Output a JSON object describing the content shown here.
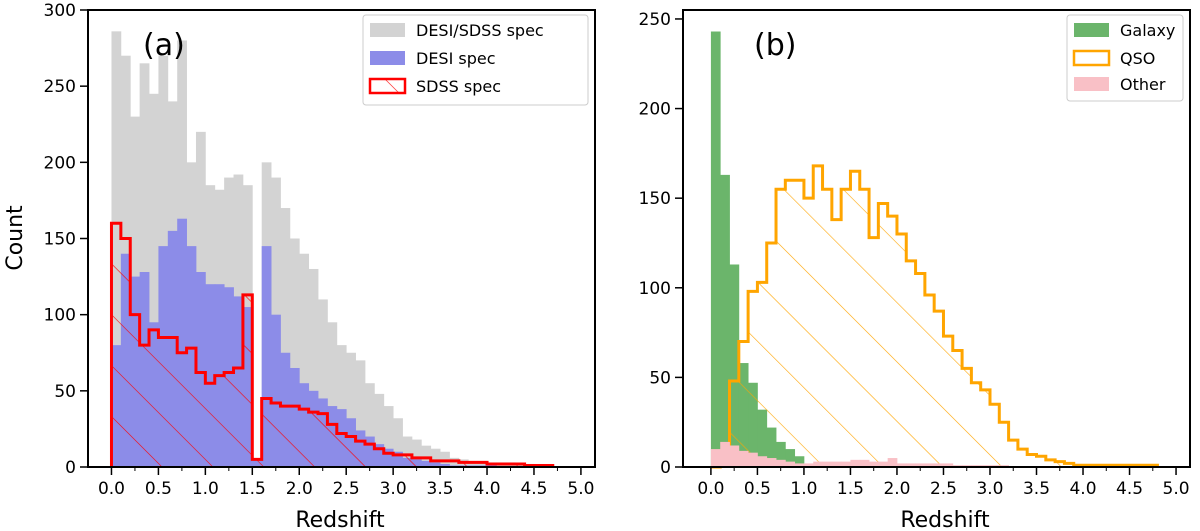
{
  "chart_data": [
    {
      "type": "histogram",
      "panel_label": "(a)",
      "xlabel": "Redshift",
      "ylabel": "Count",
      "xlim": [
        -0.25,
        5.15
      ],
      "ylim": [
        0,
        300
      ],
      "x_ticks": [
        "0.0",
        "0.5",
        "1.0",
        "1.5",
        "2.0",
        "2.5",
        "3.0",
        "3.5",
        "4.0",
        "4.5",
        "5.0"
      ],
      "x_tick_values": [
        0,
        0.5,
        1,
        1.5,
        2,
        2.5,
        3,
        3.5,
        4,
        4.5,
        5
      ],
      "y_ticks": [
        "0",
        "50",
        "100",
        "150",
        "200",
        "250",
        "300"
      ],
      "y_tick_values": [
        0,
        50,
        100,
        150,
        200,
        250,
        300
      ],
      "legend_position": "top-right",
      "bin_start": 0.0,
      "bin_width": 0.1,
      "series": [
        {
          "name": "DESI/SDSS spec",
          "style": "filled",
          "color": "#d3d3d3",
          "values": [
            286,
            270,
            230,
            265,
            245,
            270,
            240,
            280,
            200,
            220,
            185,
            182,
            190,
            192,
            185,
            5,
            200,
            190,
            170,
            150,
            140,
            130,
            110,
            95,
            80,
            75,
            70,
            55,
            48,
            40,
            32,
            20,
            18,
            14,
            12,
            10,
            6,
            5,
            4,
            4,
            3,
            3,
            3,
            2,
            2,
            1,
            1
          ]
        },
        {
          "name": "DESI spec",
          "style": "filled",
          "color": "#8c8ce8",
          "values": [
            80,
            140,
            125,
            128,
            95,
            145,
            155,
            163,
            145,
            128,
            120,
            120,
            118,
            112,
            105,
            5,
            145,
            100,
            75,
            65,
            55,
            50,
            45,
            40,
            38,
            32,
            24,
            20,
            15,
            12,
            10,
            6,
            5,
            4,
            3,
            2,
            1,
            1,
            1,
            1,
            1,
            0,
            0,
            0,
            0,
            0,
            0
          ]
        },
        {
          "name": "SDSS spec",
          "style": "hatched-outline",
          "color": "#ff0000",
          "values": [
            160,
            150,
            100,
            80,
            90,
            85,
            85,
            75,
            78,
            62,
            55,
            60,
            62,
            65,
            113,
            5,
            45,
            42,
            40,
            40,
            38,
            36,
            35,
            28,
            22,
            20,
            17,
            15,
            12,
            9,
            8,
            8,
            6,
            6,
            4,
            4,
            4,
            3,
            3,
            3,
            2,
            2,
            2,
            2,
            1,
            1,
            1
          ]
        }
      ]
    },
    {
      "type": "histogram",
      "panel_label": "(b)",
      "xlabel": "Redshift",
      "ylabel": "",
      "xlim": [
        -0.3,
        5.15
      ],
      "ylim": [
        0,
        255
      ],
      "x_ticks": [
        "0.0",
        "0.5",
        "1.0",
        "1.5",
        "2.0",
        "2.5",
        "3.0",
        "3.5",
        "4.0",
        "4.5",
        "5.0"
      ],
      "x_tick_values": [
        0,
        0.5,
        1,
        1.5,
        2,
        2.5,
        3,
        3.5,
        4,
        4.5,
        5
      ],
      "y_ticks": [
        "0",
        "50",
        "100",
        "150",
        "200",
        "250"
      ],
      "y_tick_values": [
        0,
        50,
        100,
        150,
        200,
        250
      ],
      "legend_position": "top-right",
      "bin_start": 0.0,
      "bin_width": 0.1,
      "series": [
        {
          "name": "Galaxy",
          "style": "filled",
          "color": "#6bb56b",
          "values": [
            243,
            163,
            113,
            58,
            47,
            32,
            22,
            14,
            10,
            6,
            0,
            0,
            0,
            0,
            0,
            0,
            0,
            0,
            0,
            0,
            0,
            0,
            0,
            0,
            0,
            0,
            0,
            0,
            0,
            0,
            0,
            0,
            0,
            0,
            0,
            0,
            0,
            0,
            0,
            0,
            0,
            0,
            0,
            0,
            0,
            0,
            0,
            0
          ]
        },
        {
          "name": "QSO",
          "style": "hatched-outline",
          "color": "#ffa500",
          "values": [
            0,
            5,
            48,
            70,
            98,
            103,
            125,
            155,
            160,
            160,
            150,
            168,
            155,
            138,
            155,
            165,
            155,
            128,
            147,
            140,
            130,
            115,
            108,
            96,
            87,
            73,
            65,
            55,
            47,
            43,
            35,
            25,
            15,
            10,
            7,
            6,
            4,
            3,
            2,
            1,
            1,
            1,
            1,
            1,
            1,
            1,
            1,
            1
          ]
        },
        {
          "name": "Other",
          "style": "filled",
          "color": "#f9c0c6",
          "values": [
            10,
            14,
            12,
            9,
            8,
            6,
            5,
            4,
            3,
            2,
            2,
            3,
            3,
            3,
            3,
            4,
            4,
            3,
            3,
            5,
            2,
            2,
            2,
            2,
            2,
            2,
            1,
            1,
            1,
            1,
            1,
            1,
            0,
            0,
            0,
            0,
            0,
            0,
            0,
            0,
            0,
            0,
            0,
            0,
            0,
            0,
            0,
            0
          ]
        }
      ]
    }
  ]
}
